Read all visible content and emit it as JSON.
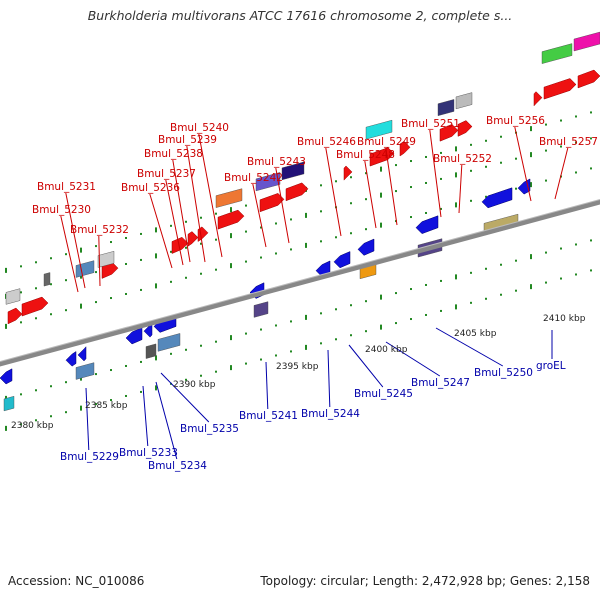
{
  "title": "Burkholderia multivorans ATCC 17616 chromosome 2, complete s...",
  "footer": {
    "accession": "Accession: NC_010086",
    "summary": "Topology: circular; Length: 2,472,928 bp; Genes: 2,158"
  },
  "colors": {
    "forward_label": "#cc0000",
    "reverse_label": "#0000aa",
    "forward_gene": "#ee1111",
    "reverse_gene": "#1111dd",
    "backbone": "#888888",
    "tick": "#228822"
  },
  "scale_labels": [
    "2380 kbp",
    "2385 kbp",
    "2390 kbp",
    "2395 kbp",
    "2400 kbp",
    "2405 kbp",
    "2410 kbp"
  ],
  "forward_labels": [
    "Bmul_5230",
    "Bmul_5231",
    "Bmul_5232",
    "Bmul_5236",
    "Bmul_5237",
    "Bmul_5238",
    "Bmul_5239",
    "Bmul_5240",
    "Bmul_5242",
    "Bmul_5243",
    "Bmul_5246",
    "Bmul_5248",
    "Bmul_5249",
    "Bmul_5251",
    "Bmul_5252",
    "Bmul_5256",
    "Bmul_5257"
  ],
  "reverse_labels": [
    "Bmul_5229",
    "Bmul_5233",
    "Bmul_5234",
    "Bmul_5235",
    "Bmul_5241",
    "Bmul_5244",
    "Bmul_5245",
    "Bmul_5247",
    "Bmul_5250",
    "groEL"
  ]
}
